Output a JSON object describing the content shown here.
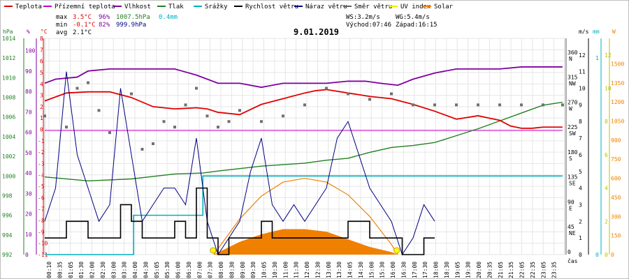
{
  "legend": [
    {
      "label": "Teplota",
      "color": "#e00000"
    },
    {
      "label": "Přízemní teplota",
      "color": "#c000c0"
    },
    {
      "label": "Vlhkost",
      "color": "#8000a0"
    },
    {
      "label": "Tlak",
      "color": "#208020"
    },
    {
      "label": "Srážky",
      "color": "#00b0c0"
    },
    {
      "label": "Rychlost větru",
      "color": "#000000"
    },
    {
      "label": "Náraz větru",
      "color": "#000080"
    },
    {
      "label": "Směr větru",
      "color": "#606060"
    },
    {
      "label": "UV index",
      "color": "#f0f000"
    },
    {
      "label": "Solar",
      "color": "#f08000"
    }
  ],
  "stats": {
    "max_label": "max",
    "max_temp": "3.5°C",
    "max_hum": "96%",
    "max_press": "1007.5hPa",
    "precip": "0.4mm",
    "min_label": "min",
    "min_temp": "-0.1°C",
    "min_hum": "82%",
    "min_press": "999.9hPa",
    "avg_label": "avg",
    "avg_temp": "2.1°C",
    "ws": "WS:3.2m/s",
    "wg": "WG:5.4m/s",
    "sunrise": "Východ:07:46",
    "sunset": "Západ:16:15"
  },
  "date": "9.01.2019",
  "axis_units": {
    "press": "hPa",
    "hum": "%",
    "temp": "°C",
    "wind": "m/s",
    "precip": "mm",
    "uv": "W",
    "time": "čas"
  },
  "chart_data": {
    "type": "line",
    "title": "9.01.2019",
    "x_ticks": [
      "00:10",
      "00:35",
      "01:05",
      "01:30",
      "02:00",
      "02:30",
      "03:00",
      "03:30",
      "04:00",
      "04:30",
      "05:05",
      "05:30",
      "06:00",
      "06:30",
      "07:00",
      "07:30",
      "08:00",
      "08:30",
      "09:00",
      "09:30",
      "10:05",
      "10:30",
      "11:00",
      "11:30",
      "12:00",
      "12:30",
      "13:00",
      "13:30",
      "14:05",
      "14:30",
      "15:00",
      "15:30",
      "16:00",
      "16:30",
      "17:00",
      "17:30",
      "18:00",
      "18:30",
      "19:05",
      "19:30",
      "20:00",
      "20:35",
      "21:05",
      "21:35",
      "22:05",
      "22:35",
      "23:05",
      "23:35"
    ],
    "axes": {
      "pressure_hpa": {
        "ticks": [
          992,
          994,
          996,
          998,
          1000,
          1002,
          1004,
          1006,
          1008,
          1010,
          1012,
          1014
        ]
      },
      "humidity_pct": {
        "ticks": [
          0,
          10,
          20,
          30,
          40,
          50,
          60,
          70,
          80,
          90,
          100
        ]
      },
      "temperature_c": {
        "ticks": [
          -11,
          -10,
          -9,
          -8,
          -7,
          -6,
          -5,
          -4,
          -3,
          -2,
          -1,
          0,
          1,
          2,
          3,
          4,
          5,
          6,
          7,
          8
        ]
      },
      "wind_dir": {
        "ticks": [
          "0",
          "45 NE",
          "90 E",
          "135 SE",
          "180 S",
          "225 SW",
          "270 W",
          "315 NW",
          "360 N"
        ]
      },
      "wind_ms": {
        "ticks": [
          0,
          1,
          2,
          3,
          4,
          5,
          6,
          7,
          8,
          9,
          10,
          11,
          12
        ]
      },
      "precip_mm": {
        "ticks": [
          0,
          1
        ]
      },
      "uv": {
        "ticks": [
          0,
          2,
          4,
          6,
          8,
          10,
          12
        ]
      },
      "solar": {
        "ticks": [
          0,
          150,
          300,
          450,
          600,
          750,
          900,
          1050,
          1200,
          1350,
          1500
        ]
      }
    },
    "series": [
      {
        "name": "Teplota",
        "unit": "°C",
        "x": [
          0,
          1,
          2,
          3,
          4,
          5,
          6,
          7,
          7.5,
          8,
          9,
          10,
          11,
          12,
          12.5,
          13,
          14,
          15,
          16,
          17,
          18,
          19,
          20,
          20.5,
          21,
          21.5,
          22,
          22.5,
          23,
          23.9
        ],
        "y": [
          2.5,
          3.2,
          3.3,
          3.3,
          2.8,
          2.0,
          1.8,
          1.9,
          1.8,
          1.5,
          1.3,
          2.2,
          2.7,
          3.2,
          3.4,
          3.5,
          3.2,
          2.9,
          2.7,
          2.2,
          1.6,
          0.9,
          1.2,
          1.0,
          0.8,
          0.3,
          0.1,
          0.1,
          0.2,
          0.2
        ]
      },
      {
        "name": "Přízemní teplota",
        "unit": "°C",
        "x": [
          0,
          23.9
        ],
        "y": [
          -0.1,
          -0.1
        ]
      },
      {
        "name": "Vlhkost",
        "unit": "%",
        "x": [
          0,
          0.5,
          1.5,
          2,
          3,
          4.3,
          5,
          6,
          7,
          8,
          9,
          10,
          11,
          12,
          13,
          14,
          14.8,
          15.5,
          16.3,
          17,
          18,
          19,
          20,
          21,
          22,
          23,
          23.9
        ],
        "y": [
          84,
          86,
          87,
          90,
          91,
          91,
          91,
          91,
          88,
          84,
          84,
          82,
          84,
          84,
          84,
          85,
          85,
          84,
          83,
          86,
          89,
          91,
          91,
          91,
          92,
          92,
          92
        ]
      },
      {
        "name": "Tlak",
        "unit": "hPa",
        "x": [
          0,
          2,
          4,
          6,
          7.3,
          8,
          10,
          12,
          13,
          14,
          15,
          16,
          17,
          18,
          19,
          20,
          21,
          22,
          23,
          23.9
        ],
        "y": [
          999.9,
          999.5,
          999.7,
          1000.2,
          1000.3,
          1000.5,
          1001.0,
          1001.3,
          1001.6,
          1001.8,
          1002.4,
          1002.9,
          1003.1,
          1003.4,
          1004.1,
          1004.8,
          1005.6,
          1006.4,
          1007.2,
          1007.5
        ]
      },
      {
        "name": "Srážky",
        "unit": "mm",
        "x": [
          0,
          4,
          4.1,
          7.2,
          7.3,
          8,
          23.9
        ],
        "y": [
          0,
          0,
          0.2,
          0.2,
          0.4,
          0.4,
          0.4
        ]
      },
      {
        "name": "Rychlost větru",
        "unit": "m/s",
        "x": [
          0,
          0.5,
          1,
          1.5,
          2,
          2.5,
          3,
          3.5,
          4,
          4.5,
          5,
          5.5,
          6,
          6.5,
          7,
          7.5,
          8,
          8.5,
          9,
          9.5,
          10,
          10.5,
          11,
          11.5,
          12,
          12.5,
          13,
          13.5,
          14,
          14.5,
          15,
          15.5,
          16,
          16.5,
          17,
          17.5,
          18
        ],
        "y": [
          1,
          1,
          2,
          2,
          1,
          1,
          1,
          3,
          2,
          1,
          1,
          1,
          2,
          1,
          4,
          1,
          0,
          1,
          1,
          1,
          2,
          1,
          1,
          1,
          1,
          1,
          1,
          1,
          2,
          2,
          1,
          1,
          1,
          0,
          0,
          1,
          1
        ]
      },
      {
        "name": "Náraz větru",
        "unit": "m/s",
        "x": [
          0,
          0.5,
          1,
          1.5,
          2,
          2.5,
          3,
          3.5,
          4,
          4.5,
          5,
          5.5,
          6,
          6.5,
          7,
          7.5,
          8,
          8.5,
          9,
          9.5,
          10,
          10.5,
          11,
          11.5,
          12,
          12.5,
          13,
          13.5,
          14,
          14.5,
          15,
          15.5,
          16,
          16.5,
          17,
          17.5,
          18
        ],
        "y": [
          2,
          4,
          11,
          6,
          4,
          2,
          3,
          10,
          6,
          2,
          3,
          4,
          4,
          3,
          7,
          2,
          0,
          1,
          2,
          5,
          7,
          3,
          2,
          3,
          2,
          3,
          4,
          7,
          8,
          6,
          4,
          3,
          2,
          0,
          1,
          3,
          2
        ]
      },
      {
        "name": "Směr větru",
        "unit": "°",
        "x": [
          0,
          1,
          1.5,
          2,
          2.5,
          3,
          4,
          4.5,
          5,
          5.5,
          6,
          6.5,
          7,
          7.5,
          8,
          8.5,
          9,
          10,
          11,
          12,
          13,
          14,
          15,
          16,
          17,
          18,
          19,
          20,
          21,
          22,
          23,
          23.9
        ],
        "y": [
          250,
          230,
          300,
          310,
          260,
          220,
          290,
          190,
          200,
          240,
          230,
          270,
          300,
          250,
          230,
          240,
          260,
          240,
          250,
          270,
          300,
          290,
          280,
          290,
          270,
          270,
          270,
          270,
          270,
          270,
          270,
          270
        ]
      },
      {
        "name": "Solar",
        "unit": "W/m²",
        "x": [
          7.8,
          9,
          10,
          11,
          12,
          13,
          14,
          15,
          16,
          16.3
        ],
        "y": [
          0,
          100,
          160,
          200,
          200,
          180,
          120,
          60,
          20,
          0
        ]
      }
    ],
    "solar_theoretical": {
      "x": [
        7.8,
        9,
        10,
        11,
        12,
        13,
        14,
        15,
        16,
        16.3
      ],
      "y": [
        0,
        280,
        460,
        570,
        600,
        570,
        470,
        300,
        80,
        0
      ]
    }
  }
}
